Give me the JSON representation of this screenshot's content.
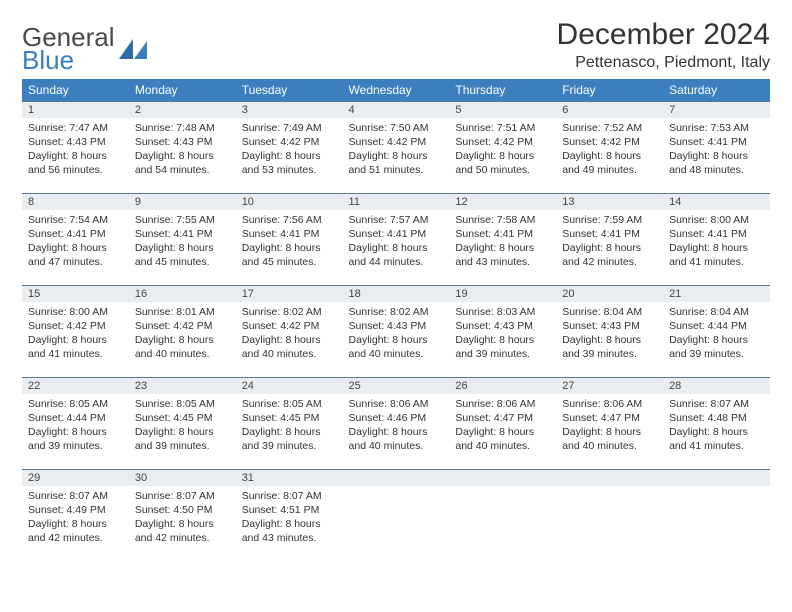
{
  "brand": {
    "word1": "General",
    "word2": "Blue"
  },
  "title": "December 2024",
  "location": "Pettenasco, Piedmont, Italy",
  "colors": {
    "header_bg": "#3b7fbf",
    "header_fg": "#ffffff",
    "daynum_bg": "#e9edf0",
    "daynum_border": "#5a7a96",
    "page_bg": "#ffffff",
    "text": "#333333"
  },
  "weekdays": [
    "Sunday",
    "Monday",
    "Tuesday",
    "Wednesday",
    "Thursday",
    "Friday",
    "Saturday"
  ],
  "weeks": [
    [
      {
        "n": "1",
        "sr": "Sunrise: 7:47 AM",
        "ss": "Sunset: 4:43 PM",
        "dl1": "Daylight: 8 hours",
        "dl2": "and 56 minutes."
      },
      {
        "n": "2",
        "sr": "Sunrise: 7:48 AM",
        "ss": "Sunset: 4:43 PM",
        "dl1": "Daylight: 8 hours",
        "dl2": "and 54 minutes."
      },
      {
        "n": "3",
        "sr": "Sunrise: 7:49 AM",
        "ss": "Sunset: 4:42 PM",
        "dl1": "Daylight: 8 hours",
        "dl2": "and 53 minutes."
      },
      {
        "n": "4",
        "sr": "Sunrise: 7:50 AM",
        "ss": "Sunset: 4:42 PM",
        "dl1": "Daylight: 8 hours",
        "dl2": "and 51 minutes."
      },
      {
        "n": "5",
        "sr": "Sunrise: 7:51 AM",
        "ss": "Sunset: 4:42 PM",
        "dl1": "Daylight: 8 hours",
        "dl2": "and 50 minutes."
      },
      {
        "n": "6",
        "sr": "Sunrise: 7:52 AM",
        "ss": "Sunset: 4:42 PM",
        "dl1": "Daylight: 8 hours",
        "dl2": "and 49 minutes."
      },
      {
        "n": "7",
        "sr": "Sunrise: 7:53 AM",
        "ss": "Sunset: 4:41 PM",
        "dl1": "Daylight: 8 hours",
        "dl2": "and 48 minutes."
      }
    ],
    [
      {
        "n": "8",
        "sr": "Sunrise: 7:54 AM",
        "ss": "Sunset: 4:41 PM",
        "dl1": "Daylight: 8 hours",
        "dl2": "and 47 minutes."
      },
      {
        "n": "9",
        "sr": "Sunrise: 7:55 AM",
        "ss": "Sunset: 4:41 PM",
        "dl1": "Daylight: 8 hours",
        "dl2": "and 45 minutes."
      },
      {
        "n": "10",
        "sr": "Sunrise: 7:56 AM",
        "ss": "Sunset: 4:41 PM",
        "dl1": "Daylight: 8 hours",
        "dl2": "and 45 minutes."
      },
      {
        "n": "11",
        "sr": "Sunrise: 7:57 AM",
        "ss": "Sunset: 4:41 PM",
        "dl1": "Daylight: 8 hours",
        "dl2": "and 44 minutes."
      },
      {
        "n": "12",
        "sr": "Sunrise: 7:58 AM",
        "ss": "Sunset: 4:41 PM",
        "dl1": "Daylight: 8 hours",
        "dl2": "and 43 minutes."
      },
      {
        "n": "13",
        "sr": "Sunrise: 7:59 AM",
        "ss": "Sunset: 4:41 PM",
        "dl1": "Daylight: 8 hours",
        "dl2": "and 42 minutes."
      },
      {
        "n": "14",
        "sr": "Sunrise: 8:00 AM",
        "ss": "Sunset: 4:41 PM",
        "dl1": "Daylight: 8 hours",
        "dl2": "and 41 minutes."
      }
    ],
    [
      {
        "n": "15",
        "sr": "Sunrise: 8:00 AM",
        "ss": "Sunset: 4:42 PM",
        "dl1": "Daylight: 8 hours",
        "dl2": "and 41 minutes."
      },
      {
        "n": "16",
        "sr": "Sunrise: 8:01 AM",
        "ss": "Sunset: 4:42 PM",
        "dl1": "Daylight: 8 hours",
        "dl2": "and 40 minutes."
      },
      {
        "n": "17",
        "sr": "Sunrise: 8:02 AM",
        "ss": "Sunset: 4:42 PM",
        "dl1": "Daylight: 8 hours",
        "dl2": "and 40 minutes."
      },
      {
        "n": "18",
        "sr": "Sunrise: 8:02 AM",
        "ss": "Sunset: 4:43 PM",
        "dl1": "Daylight: 8 hours",
        "dl2": "and 40 minutes."
      },
      {
        "n": "19",
        "sr": "Sunrise: 8:03 AM",
        "ss": "Sunset: 4:43 PM",
        "dl1": "Daylight: 8 hours",
        "dl2": "and 39 minutes."
      },
      {
        "n": "20",
        "sr": "Sunrise: 8:04 AM",
        "ss": "Sunset: 4:43 PM",
        "dl1": "Daylight: 8 hours",
        "dl2": "and 39 minutes."
      },
      {
        "n": "21",
        "sr": "Sunrise: 8:04 AM",
        "ss": "Sunset: 4:44 PM",
        "dl1": "Daylight: 8 hours",
        "dl2": "and 39 minutes."
      }
    ],
    [
      {
        "n": "22",
        "sr": "Sunrise: 8:05 AM",
        "ss": "Sunset: 4:44 PM",
        "dl1": "Daylight: 8 hours",
        "dl2": "and 39 minutes."
      },
      {
        "n": "23",
        "sr": "Sunrise: 8:05 AM",
        "ss": "Sunset: 4:45 PM",
        "dl1": "Daylight: 8 hours",
        "dl2": "and 39 minutes."
      },
      {
        "n": "24",
        "sr": "Sunrise: 8:05 AM",
        "ss": "Sunset: 4:45 PM",
        "dl1": "Daylight: 8 hours",
        "dl2": "and 39 minutes."
      },
      {
        "n": "25",
        "sr": "Sunrise: 8:06 AM",
        "ss": "Sunset: 4:46 PM",
        "dl1": "Daylight: 8 hours",
        "dl2": "and 40 minutes."
      },
      {
        "n": "26",
        "sr": "Sunrise: 8:06 AM",
        "ss": "Sunset: 4:47 PM",
        "dl1": "Daylight: 8 hours",
        "dl2": "and 40 minutes."
      },
      {
        "n": "27",
        "sr": "Sunrise: 8:06 AM",
        "ss": "Sunset: 4:47 PM",
        "dl1": "Daylight: 8 hours",
        "dl2": "and 40 minutes."
      },
      {
        "n": "28",
        "sr": "Sunrise: 8:07 AM",
        "ss": "Sunset: 4:48 PM",
        "dl1": "Daylight: 8 hours",
        "dl2": "and 41 minutes."
      }
    ],
    [
      {
        "n": "29",
        "sr": "Sunrise: 8:07 AM",
        "ss": "Sunset: 4:49 PM",
        "dl1": "Daylight: 8 hours",
        "dl2": "and 42 minutes."
      },
      {
        "n": "30",
        "sr": "Sunrise: 8:07 AM",
        "ss": "Sunset: 4:50 PM",
        "dl1": "Daylight: 8 hours",
        "dl2": "and 42 minutes."
      },
      {
        "n": "31",
        "sr": "Sunrise: 8:07 AM",
        "ss": "Sunset: 4:51 PM",
        "dl1": "Daylight: 8 hours",
        "dl2": "and 43 minutes."
      },
      {
        "empty": true
      },
      {
        "empty": true
      },
      {
        "empty": true
      },
      {
        "empty": true
      }
    ]
  ]
}
